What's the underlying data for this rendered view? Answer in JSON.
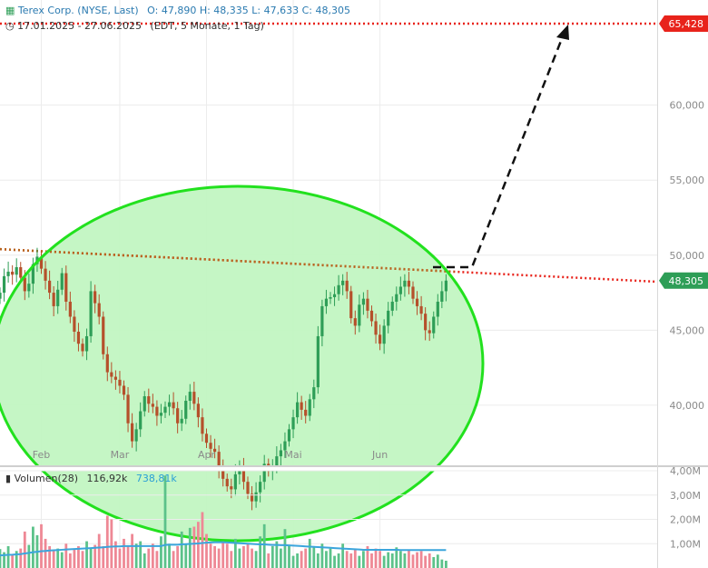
{
  "header": {
    "name": "Terex Corp. (NYSE, Last)",
    "ohlc": "O: 47,890  H: 48,335  L: 47,633  C: 48,305",
    "range": "17.01.2025 - 27.06.2025",
    "period": "(EDT, 5 Monate, 1 Tag)"
  },
  "volume_header": {
    "label": "Volumen(28)",
    "value1": "116,92k",
    "value2": "738,81k"
  },
  "colors": {
    "up": "#2e9e57",
    "down": "#b5502b",
    "ellipse": "#22e11e",
    "ellipse_fill": "#c2f5c2",
    "target_line": "#e8231b",
    "trend_line": "#b5651d",
    "arrow": "#111111",
    "last_tag": "#2e9e57",
    "target_tag": "#e8231b",
    "vol_up": "#5cc28a",
    "vol_down": "#ee8895",
    "vol_avg": "#3ba5dc"
  },
  "chart_data": {
    "type": "candlestick",
    "ylim": [
      36,
      67
    ],
    "y_ticks": [
      {
        "value": 40,
        "label": "40,000"
      },
      {
        "value": 45,
        "label": "45,000"
      },
      {
        "value": 50,
        "label": "50,000"
      },
      {
        "value": 55,
        "label": "55,000"
      },
      {
        "value": 60,
        "label": "60,000"
      }
    ],
    "x_ticks": [
      {
        "index": 10,
        "label": "Feb"
      },
      {
        "index": 29,
        "label": "Mar"
      },
      {
        "index": 50,
        "label": "Apr"
      },
      {
        "index": 71,
        "label": "Mai"
      },
      {
        "index": 92,
        "label": "Jun"
      }
    ],
    "levels": {
      "target": {
        "value": 65.428,
        "label": "65,428"
      },
      "last": {
        "value": 48.305,
        "label": "48,305"
      }
    },
    "trendline": {
      "start": {
        "index": 0,
        "value": 50.4
      },
      "end": {
        "index": 110,
        "value": 48.9
      }
    },
    "closes": [
      47.5,
      48.6,
      48.9,
      48.7,
      49.2,
      48.5,
      47.6,
      48.1,
      49.4,
      49.9,
      49.1,
      48.3,
      47.5,
      46.6,
      47.7,
      48.8,
      46.9,
      45.9,
      44.9,
      44.1,
      43.6,
      44.6,
      47.6,
      46.8,
      45.9,
      43.4,
      42.2,
      41.9,
      41.7,
      41.3,
      40.7,
      38.8,
      37.6,
      38.4,
      39.6,
      40.6,
      40.1,
      39.9,
      39.3,
      39.5,
      39.9,
      40.2,
      39.8,
      38.8,
      39.1,
      40.3,
      40.9,
      40.1,
      39.2,
      38.1,
      37.5,
      37.1,
      36.9,
      35.8,
      35.1,
      34.6,
      34.4,
      35.4,
      35.9,
      34.9,
      34.1,
      33.6,
      34.2,
      34.9,
      36.1,
      35.6,
      35.9,
      36.6,
      37.0,
      37.6,
      38.4,
      39.2,
      40.2,
      39.7,
      39.3,
      40.4,
      41.2,
      44.6,
      46.6,
      47.1,
      47.2,
      47.4,
      48.0,
      48.3,
      47.6,
      45.8,
      45.3,
      46.7,
      47.1,
      46.3,
      45.6,
      44.7,
      44.1,
      45.3,
      46.3,
      46.9,
      47.4,
      47.9,
      48.3,
      47.9,
      47.1,
      46.6,
      46.1,
      45.0,
      44.8,
      45.9,
      46.9,
      47.6,
      48.305
    ],
    "volume": {
      "ylim": [
        0,
        4000000
      ],
      "y_ticks": [
        {
          "value": 1000000,
          "label": "1,00M"
        },
        {
          "value": 2000000,
          "label": "2,00M"
        },
        {
          "value": 3000000,
          "label": "3,00M"
        },
        {
          "value": 4000000,
          "label": "4,00M"
        }
      ],
      "values": [
        780000,
        650000,
        900000,
        560000,
        700000,
        800000,
        1500000,
        950000,
        1700000,
        1350000,
        1800000,
        1200000,
        900000,
        700000,
        800000,
        650000,
        1000000,
        600000,
        780000,
        900000,
        700000,
        1100000,
        800000,
        950000,
        1400000,
        900000,
        2150000,
        2000000,
        1100000,
        800000,
        1200000,
        900000,
        1400000,
        1000000,
        1100000,
        600000,
        800000,
        1000000,
        700000,
        1300000,
        3800000,
        1000000,
        700000,
        900000,
        1500000,
        1000000,
        1650000,
        1700000,
        1900000,
        2300000,
        1400000,
        1000000,
        900000,
        800000,
        1100000,
        1000000,
        700000,
        1200000,
        800000,
        900000,
        1000000,
        800000,
        700000,
        1300000,
        1800000,
        600000,
        900000,
        1100000,
        800000,
        1600000,
        900000,
        500000,
        600000,
        700000,
        800000,
        1200000,
        900000,
        600000,
        1000000,
        700000,
        800000,
        500000,
        600000,
        1000000,
        700000,
        600000,
        800000,
        500000,
        700000,
        900000,
        600000,
        800000,
        700000,
        500000,
        650000,
        600000,
        850000,
        700000,
        600000,
        750000,
        550000,
        650000,
        700000,
        500000,
        600000,
        450000,
        550000,
        350000,
        300000
      ],
      "average": [
        520000,
        530000,
        540000,
        545000,
        560000,
        570000,
        600000,
        620000,
        650000,
        670000,
        690000,
        700000,
        720000,
        730000,
        740000,
        750000,
        760000,
        770000,
        780000,
        790000,
        800000,
        810000,
        820000,
        830000,
        840000,
        850000,
        870000,
        880000,
        890000,
        890000,
        900000,
        900000,
        900000,
        900000,
        900000,
        900000,
        900000,
        900000,
        900000,
        900000,
        950000,
        960000,
        960000,
        960000,
        970000,
        980000,
        990000,
        1000000,
        1010000,
        1030000,
        1040000,
        1050000,
        1060000,
        1060000,
        1060000,
        1050000,
        1040000,
        1030000,
        1020000,
        1010000,
        1000000,
        990000,
        980000,
        970000,
        970000,
        960000,
        950000,
        950000,
        940000,
        940000,
        930000,
        920000,
        910000,
        900000,
        890000,
        880000,
        870000,
        860000,
        850000,
        840000,
        830000,
        820000,
        810000,
        800000,
        790000,
        780000,
        770000,
        760000,
        750000,
        750000,
        750000,
        750000,
        750000,
        750000,
        750000,
        750000,
        750000,
        740000,
        740000,
        740000,
        740000,
        740000,
        740000,
        740000,
        740000,
        740000,
        740000,
        740000,
        740000
      ]
    }
  }
}
